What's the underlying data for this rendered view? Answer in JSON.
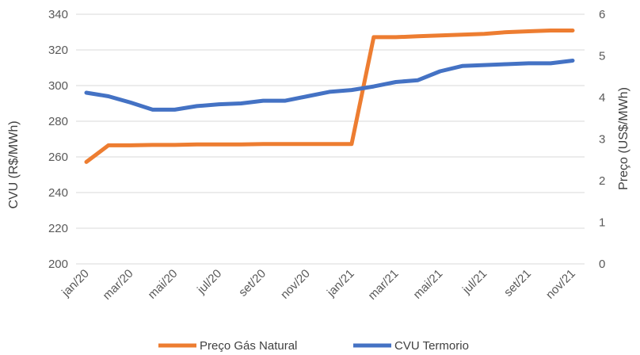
{
  "chart_data": {
    "type": "line",
    "x": [
      "jan/20",
      "fev/20",
      "mar/20",
      "abr/20",
      "mai/20",
      "jun/20",
      "jul/20",
      "ago/20",
      "set/20",
      "out/20",
      "nov/20",
      "dez/20",
      "jan/21",
      "fev/21",
      "mar/21",
      "abr/21",
      "mai/21",
      "jun/21",
      "jul/21",
      "ago/21",
      "set/21",
      "out/21",
      "nov/21"
    ],
    "x_tick_labels": [
      "jan/20",
      "mar/20",
      "mai/20",
      "jul/20",
      "set/20",
      "nov/20",
      "jan/21",
      "mar/21",
      "mai/21",
      "jul/21",
      "set/21",
      "nov/21"
    ],
    "y_left": {
      "label": "CVU (R$/MWh)",
      "ylim": [
        200,
        340
      ],
      "ticks": [
        200,
        220,
        240,
        260,
        280,
        300,
        320,
        340
      ]
    },
    "y_right": {
      "label": "Preço (US$/MWh)",
      "ylim": [
        0,
        6
      ],
      "ticks": [
        0,
        1,
        2,
        3,
        4,
        5,
        6
      ]
    },
    "series": [
      {
        "name": "Preço Gás Natural",
        "axis": "right",
        "color": "#ED7D31",
        "values": [
          2.45,
          2.85,
          2.85,
          2.86,
          2.86,
          2.87,
          2.87,
          2.87,
          2.88,
          2.88,
          2.88,
          2.88,
          2.88,
          5.45,
          5.45,
          5.47,
          5.49,
          5.51,
          5.53,
          5.57,
          5.59,
          5.61,
          5.61
        ]
      },
      {
        "name": "CVU Termorio",
        "axis": "left",
        "color": "#4472C4",
        "values": [
          296,
          294,
          290.5,
          286.5,
          286.5,
          288.5,
          289.5,
          290,
          291.5,
          291.5,
          294,
          296.5,
          297.5,
          299.5,
          302,
          303,
          308,
          311,
          311.5,
          312,
          312.5,
          312.5,
          314
        ]
      }
    ],
    "grid": true,
    "legend_position": "bottom"
  }
}
